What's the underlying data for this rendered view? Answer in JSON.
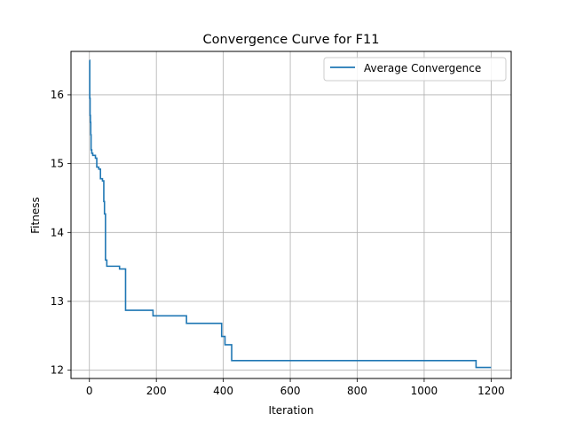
{
  "chart_data": {
    "type": "line",
    "title": "Convergence Curve for F11",
    "xlabel": "Iteration",
    "ylabel": "Fitness",
    "xlim": [
      -55,
      1260
    ],
    "ylim": [
      11.88,
      16.63
    ],
    "xticks": [
      0,
      200,
      400,
      600,
      800,
      1000,
      1200
    ],
    "yticks": [
      12,
      13,
      14,
      15,
      16
    ],
    "grid": true,
    "legend": "upper right",
    "line_color": "#1f77b4",
    "series": [
      {
        "name": "Average Convergence",
        "step": true,
        "x": [
          0,
          1,
          2,
          3,
          4,
          5,
          7,
          10,
          18,
          22,
          28,
          33,
          39,
          43,
          45,
          48,
          52,
          55,
          85,
          90,
          105,
          108,
          185,
          190,
          285,
          290,
          390,
          395,
          400,
          405,
          420,
          425,
          430,
          1150,
          1155,
          1200
        ],
        "y": [
          16.5,
          15.95,
          15.7,
          15.6,
          15.42,
          15.2,
          15.15,
          15.12,
          15.08,
          14.95,
          14.92,
          14.78,
          14.75,
          14.45,
          14.27,
          13.6,
          13.51,
          13.51,
          13.51,
          13.47,
          13.47,
          12.87,
          12.87,
          12.79,
          12.79,
          12.68,
          12.68,
          12.49,
          12.49,
          12.37,
          12.37,
          12.14,
          12.14,
          12.14,
          12.04,
          12.04
        ]
      }
    ]
  }
}
